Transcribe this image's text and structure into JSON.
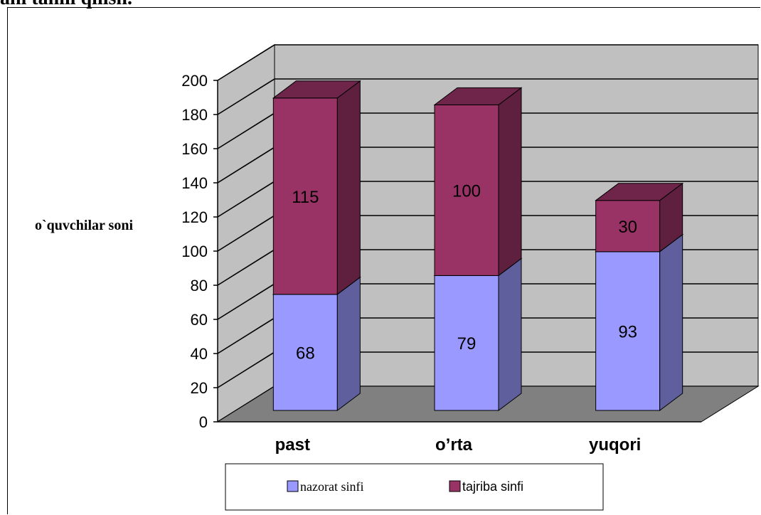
{
  "page": {
    "top_text": "ani tahlil qilish."
  },
  "chart_data": {
    "type": "bar",
    "stacked": true,
    "three_d": true,
    "categories": [
      "past",
      "o’rta",
      "yuqori"
    ],
    "series": [
      {
        "name": "nazorat sinfi",
        "values": [
          68,
          79,
          93
        ]
      },
      {
        "name": "tajriba sinfi",
        "values": [
          115,
          100,
          30
        ]
      }
    ],
    "ylabel": "o`quvchilar soni",
    "xlabel": "",
    "ylim": [
      0,
      200
    ],
    "yticks": [
      "0",
      "20",
      "40",
      "60",
      "80",
      "100",
      "120",
      "140",
      "160",
      "180",
      "200"
    ],
    "grid": true,
    "legend_position": "bottom",
    "colors": {
      "nazorat sinfi": "#9999ff",
      "tajriba sinfi": "#993366",
      "wall": "#c0c0c0",
      "floor": "#808080"
    }
  }
}
